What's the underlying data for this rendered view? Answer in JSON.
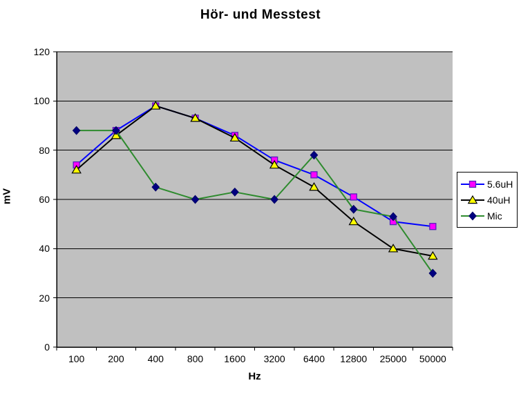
{
  "title": "Hör- und Messtest",
  "chart_data": {
    "type": "line",
    "title": "Hör- und Messtest",
    "xlabel": "Hz",
    "ylabel": "mV",
    "categories": [
      "100",
      "200",
      "400",
      "800",
      "1600",
      "3200",
      "6400",
      "12800",
      "25000",
      "50000"
    ],
    "y_ticks": [
      0,
      20,
      40,
      60,
      80,
      100,
      120
    ],
    "ylim": [
      0,
      120
    ],
    "grid": true,
    "legend_position": "right",
    "plot_background": "#c0c0c0",
    "gridline_color": "#000000",
    "series": [
      {
        "name": "5.6uH",
        "marker": "square",
        "line_color": "#0000ff",
        "marker_fill": "#ff00ff",
        "marker_stroke": "#5522bb",
        "values": [
          74,
          88,
          98,
          93,
          86,
          76,
          70,
          61,
          51,
          49
        ]
      },
      {
        "name": "40uH",
        "marker": "triangle",
        "line_color": "#000000",
        "marker_fill": "#ffff00",
        "marker_stroke": "#000000",
        "values": [
          72,
          86,
          98,
          93,
          85,
          74,
          65,
          51,
          40,
          37
        ]
      },
      {
        "name": "Mic",
        "marker": "diamond",
        "line_color": "#2e8b2e",
        "marker_fill": "#000080",
        "marker_stroke": "#000066",
        "values": [
          88,
          88,
          65,
          60,
          63,
          60,
          78,
          56,
          53,
          30
        ]
      }
    ]
  }
}
